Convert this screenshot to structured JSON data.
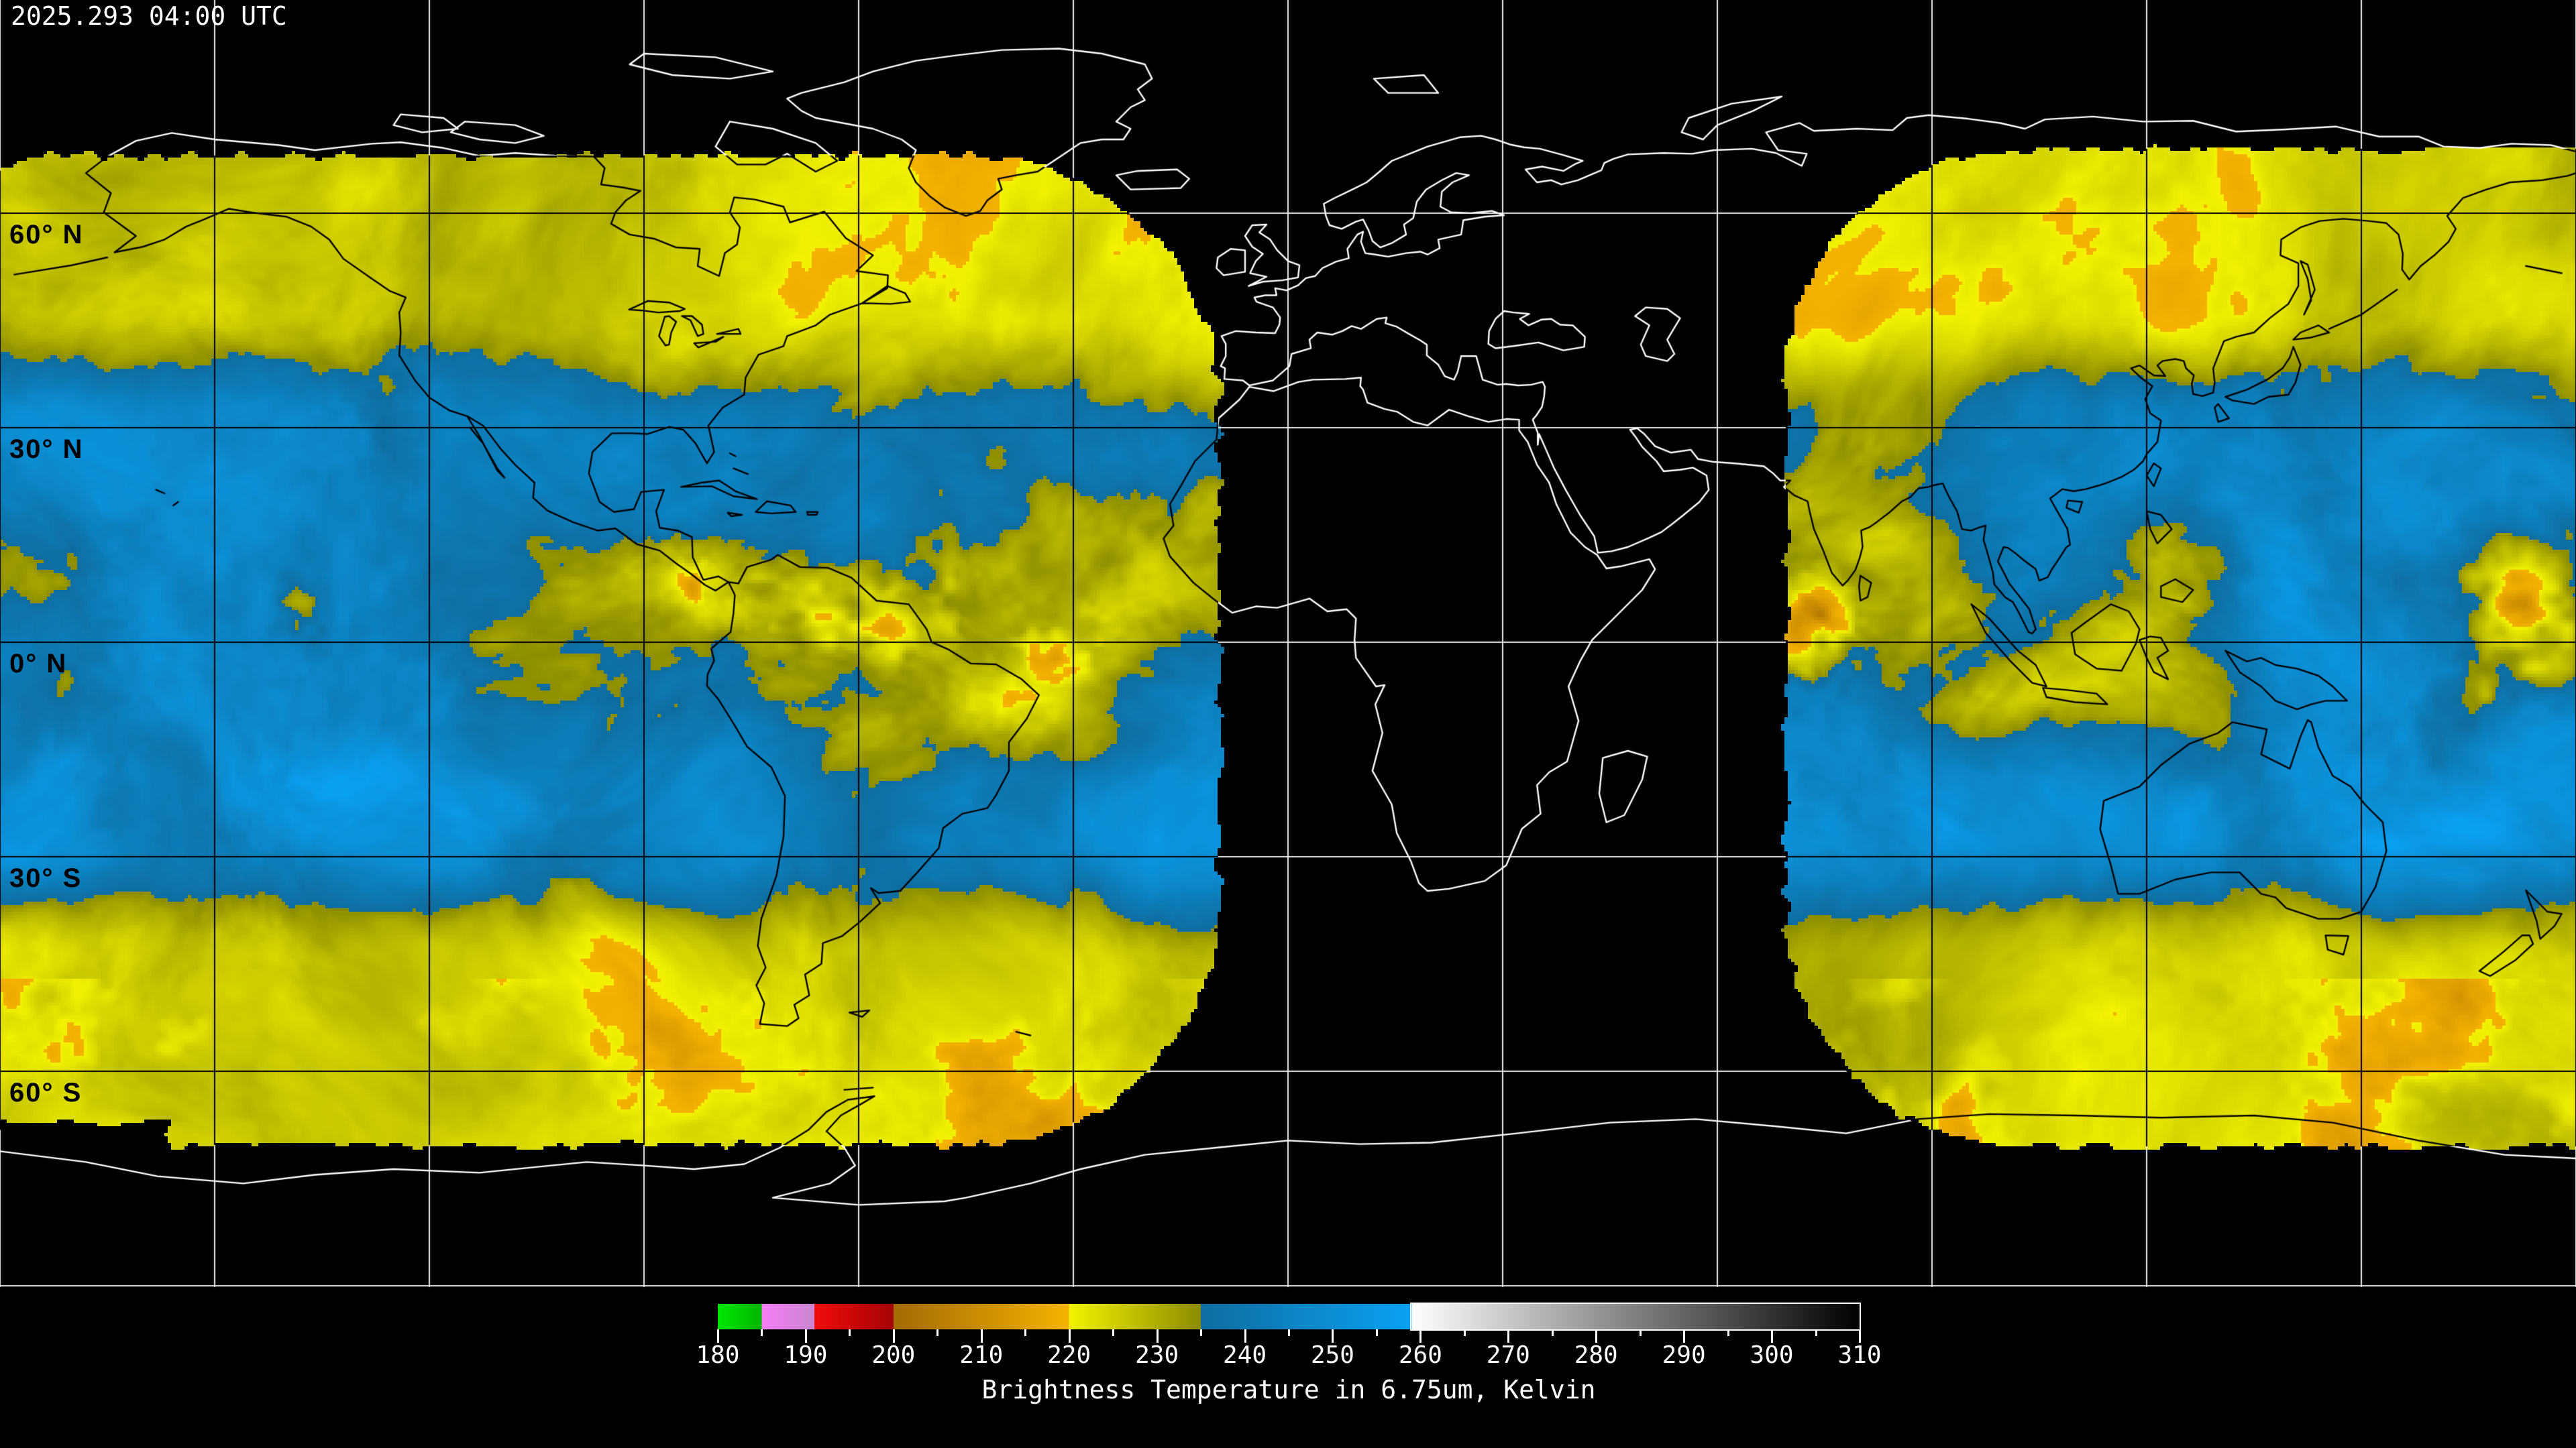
{
  "header": {
    "timestamp": "2025.293 04:00 UTC"
  },
  "map": {
    "latitude_labels": [
      "60° N",
      "30° N",
      "0° N",
      "30° S",
      "60° S"
    ],
    "grid": {
      "lat_spacing_deg": 30,
      "lon_spacing_deg": 30
    },
    "colors": {
      "background": "#000000",
      "coastline_over_background": "#ffffff",
      "coastline_over_imagery": "#000000",
      "gridline_over_background": "#e8e8e8",
      "gridline_over_imagery": "#000000",
      "label_text": "#000000",
      "timestamp_text": "#ffffff"
    }
  },
  "colorbar": {
    "caption": "Brightness Temperature in 6.75um, Kelvin",
    "min": 180,
    "max": 310,
    "tick_interval": 5,
    "label_interval": 10,
    "tick_labels": [
      "180",
      "190",
      "200",
      "210",
      "220",
      "230",
      "240",
      "250",
      "260",
      "270",
      "280",
      "290",
      "300",
      "310"
    ],
    "outline_segment_start": 259,
    "stops": [
      {
        "v": 180,
        "c": "#00e800"
      },
      {
        "v": 185,
        "c": "#00b400"
      },
      {
        "v": 185,
        "c": "#f67df6"
      },
      {
        "v": 191,
        "c": "#c986d1"
      },
      {
        "v": 191,
        "c": "#f20c0c"
      },
      {
        "v": 200,
        "c": "#a50303"
      },
      {
        "v": 200,
        "c": "#a36a05"
      },
      {
        "v": 220,
        "c": "#f5b200"
      },
      {
        "v": 220,
        "c": "#f2f200"
      },
      {
        "v": 235,
        "c": "#8c8c00"
      },
      {
        "v": 235,
        "c": "#0e6da0"
      },
      {
        "v": 259,
        "c": "#0aa1f2"
      },
      {
        "v": 259,
        "c": "#ffffff"
      },
      {
        "v": 310,
        "c": "#000000"
      }
    ]
  }
}
